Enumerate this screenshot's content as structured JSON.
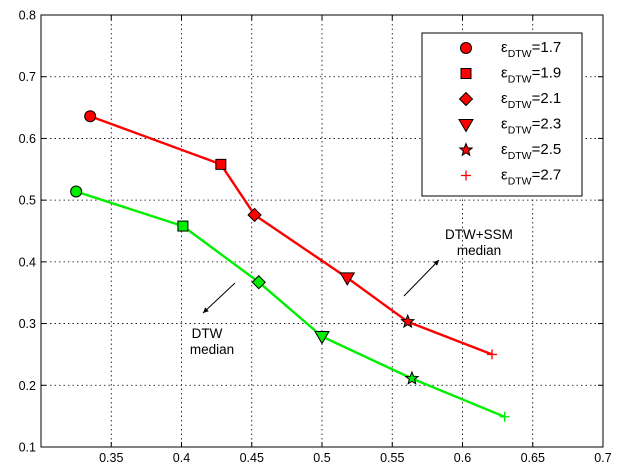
{
  "chart_data": {
    "type": "line",
    "xlim": [
      0.3,
      0.7
    ],
    "ylim": [
      0.1,
      0.8
    ],
    "x_ticks": [
      "0.35",
      "0.4",
      "0.45",
      "0.5",
      "0.55",
      "0.6",
      "0.65",
      "0.7"
    ],
    "y_ticks": [
      "0.1",
      "0.2",
      "0.3",
      "0.4",
      "0.5",
      "0.6",
      "0.7",
      "0.8"
    ],
    "grid": true,
    "legend_placement": "top-right",
    "series": [
      {
        "color": "#ff0000",
        "points": [
          {
            "x": 0.335,
            "y": 0.636,
            "marker": "circle"
          },
          {
            "x": 0.428,
            "y": 0.558,
            "marker": "square"
          },
          {
            "x": 0.452,
            "y": 0.476,
            "marker": "diamond"
          },
          {
            "x": 0.518,
            "y": 0.374,
            "marker": "triangle-down"
          },
          {
            "x": 0.561,
            "y": 0.303,
            "marker": "star"
          },
          {
            "x": 0.621,
            "y": 0.25,
            "marker": "plus"
          }
        ]
      },
      {
        "color": "#00ee00",
        "points": [
          {
            "x": 0.325,
            "y": 0.514,
            "marker": "circle"
          },
          {
            "x": 0.401,
            "y": 0.458,
            "marker": "square"
          },
          {
            "x": 0.455,
            "y": 0.367,
            "marker": "diamond"
          },
          {
            "x": 0.5,
            "y": 0.279,
            "marker": "triangle-down"
          },
          {
            "x": 0.564,
            "y": 0.211,
            "marker": "star"
          },
          {
            "x": 0.63,
            "y": 0.149,
            "marker": "plus"
          }
        ]
      }
    ],
    "legend": [
      {
        "symbol": "ε",
        "sub": "DTW",
        "value": "=1.7",
        "marker": "circle"
      },
      {
        "symbol": "ε",
        "sub": "DTW",
        "value": "=1.9",
        "marker": "square"
      },
      {
        "symbol": "ε",
        "sub": "DTW",
        "value": "=2.1",
        "marker": "diamond"
      },
      {
        "symbol": "ε",
        "sub": "DTW",
        "value": "=2.3",
        "marker": "triangle-down"
      },
      {
        "symbol": "ε",
        "sub": "DTW",
        "value": "=2.5",
        "marker": "star"
      },
      {
        "symbol": "ε",
        "sub": "DTW",
        "value": "=2.7",
        "marker": "plus"
      }
    ],
    "annotations": [
      {
        "lines": [
          "DTW+SSM",
          "median"
        ],
        "arrow": "up-right"
      },
      {
        "lines": [
          "DTW",
          "median"
        ],
        "arrow": "down-left"
      }
    ]
  }
}
